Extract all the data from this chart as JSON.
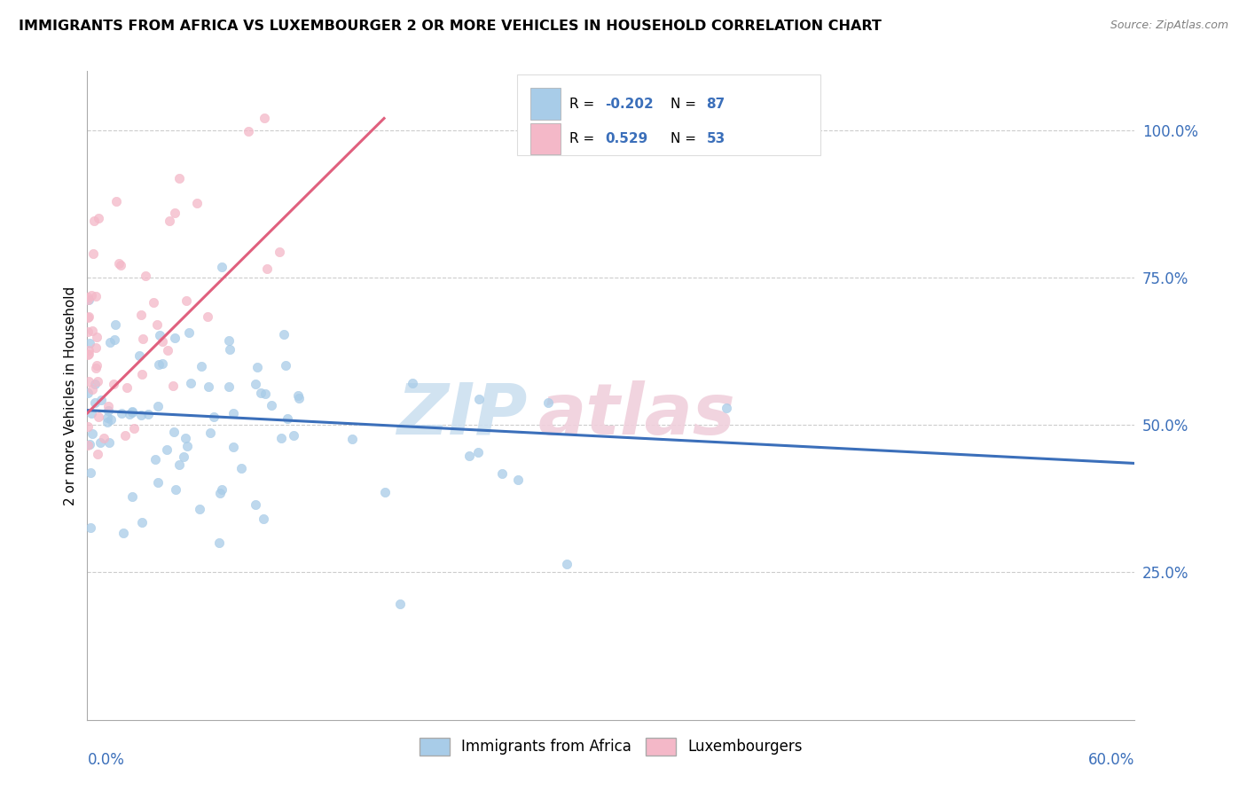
{
  "title": "IMMIGRANTS FROM AFRICA VS LUXEMBOURGER 2 OR MORE VEHICLES IN HOUSEHOLD CORRELATION CHART",
  "source": "Source: ZipAtlas.com",
  "ylabel_label": "2 or more Vehicles in Household",
  "xmin": 0.0,
  "xmax": 0.6,
  "ymin": 0.0,
  "ymax": 1.1,
  "blue_color": "#a8cce8",
  "pink_color": "#f4b8c8",
  "blue_line_color": "#3b6fba",
  "pink_line_color": "#e0607e",
  "blue_r": -0.202,
  "blue_n": 87,
  "pink_r": 0.529,
  "pink_n": 53,
  "legend_r_color": "#3b6fba",
  "legend_text_color": "#222222",
  "ytick_positions": [
    0.25,
    0.5,
    0.75,
    1.0
  ],
  "ytick_labels": [
    "25.0%",
    "50.0%",
    "75.0%",
    "100.0%"
  ],
  "grid_color": "#cccccc",
  "watermark_zip_color": "#cce0f0",
  "watermark_atlas_color": "#f0d0dc"
}
